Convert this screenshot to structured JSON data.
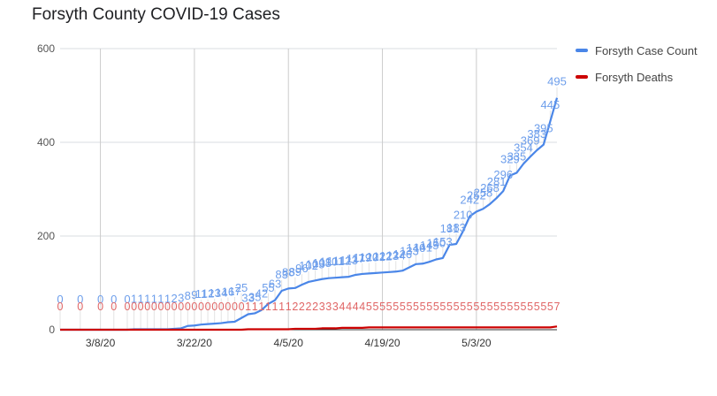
{
  "chart_data": {
    "type": "line",
    "title": "Forsyth County COVID-19 Cases",
    "xlabel": "",
    "ylabel": "",
    "ylim": [
      0,
      600
    ],
    "yticks": [
      0,
      200,
      400,
      600
    ],
    "xticks": [
      "3/8/20",
      "3/22/20",
      "4/5/20",
      "4/19/20",
      "5/3/20"
    ],
    "legend": "right",
    "grid": true,
    "series": [
      {
        "name": "Forsyth Case Count",
        "color": "#4a86e8",
        "label_color": "#6d9eeb",
        "dates": [
          "3/2/20",
          "3/5/20",
          "3/8/20",
          "3/10/20",
          "3/12/20",
          "3/13/20",
          "3/14/20",
          "3/15/20",
          "3/16/20",
          "3/17/20",
          "3/18/20",
          "3/19/20",
          "3/20/20",
          "3/21/20",
          "3/22/20",
          "3/23/20",
          "3/24/20",
          "3/25/20",
          "3/26/20",
          "3/27/20",
          "3/28/20",
          "3/29/20",
          "3/30/20",
          "3/31/20",
          "4/1/20",
          "4/2/20",
          "4/3/20",
          "4/4/20",
          "4/5/20",
          "4/6/20",
          "4/7/20",
          "4/8/20",
          "4/9/20",
          "4/10/20",
          "4/11/20",
          "4/12/20",
          "4/13/20",
          "4/14/20",
          "4/15/20",
          "4/16/20",
          "4/17/20",
          "4/18/20",
          "4/19/20",
          "4/20/20",
          "4/21/20",
          "4/22/20",
          "4/23/20",
          "4/24/20",
          "4/25/20",
          "4/26/20",
          "4/27/20",
          "4/28/20",
          "4/29/20",
          "4/30/20",
          "5/1/20",
          "5/2/20",
          "5/3/20",
          "5/4/20",
          "5/5/20",
          "5/6/20",
          "5/7/20",
          "5/8/20",
          "5/9/20",
          "5/10/20",
          "5/11/20",
          "5/12/20",
          "5/13/20",
          "5/14/20",
          "5/15/20"
        ],
        "values": [
          0,
          0,
          0,
          0,
          0,
          1,
          1,
          1,
          1,
          1,
          1,
          2,
          3,
          8,
          9,
          11,
          12,
          13,
          14,
          16,
          17,
          25,
          33,
          35,
          42,
          55,
          63,
          83,
          88,
          89,
          96,
          102,
          105,
          108,
          110,
          111,
          112,
          113,
          117,
          119,
          120,
          121,
          122,
          123,
          124,
          126,
          133,
          140,
          141,
          145,
          150,
          153,
          181,
          183,
          210,
          242,
          252,
          258,
          268,
          281,
          296,
          329,
          335,
          354,
          369,
          383,
          395,
          445,
          495
        ],
        "labels": [
          "0",
          "0",
          "0",
          "0",
          "0",
          "1",
          "1",
          "1",
          "1",
          "1",
          "1",
          "2",
          "3",
          "8",
          "9",
          "11",
          "12",
          "13",
          "14",
          "16",
          "17",
          "25",
          "33",
          "35",
          "42",
          "55",
          "63",
          "83",
          "88",
          "89",
          "96",
          "102",
          "105",
          "108",
          "110",
          "111",
          "112",
          "113",
          "117",
          "119",
          "120",
          "121",
          "122",
          "123",
          "124",
          "126",
          "133",
          "140",
          "141",
          "145",
          "150",
          "153",
          "181",
          "183",
          "210",
          "242",
          "252",
          "258",
          "268",
          "281",
          "296",
          "329",
          "335",
          "354",
          "369",
          "383",
          "395",
          "445",
          "495"
        ]
      },
      {
        "name": "Forsyth Deaths",
        "color": "#cc0000",
        "label_color": "#e06666",
        "dates": [
          "3/2/20",
          "3/5/20",
          "3/8/20",
          "3/10/20",
          "3/12/20",
          "3/13/20",
          "3/14/20",
          "3/15/20",
          "3/16/20",
          "3/17/20",
          "3/18/20",
          "3/19/20",
          "3/20/20",
          "3/21/20",
          "3/22/20",
          "3/23/20",
          "3/24/20",
          "3/25/20",
          "3/26/20",
          "3/27/20",
          "3/28/20",
          "3/29/20",
          "3/30/20",
          "3/31/20",
          "4/1/20",
          "4/2/20",
          "4/3/20",
          "4/4/20",
          "4/5/20",
          "4/6/20",
          "4/7/20",
          "4/8/20",
          "4/9/20",
          "4/10/20",
          "4/11/20",
          "4/12/20",
          "4/13/20",
          "4/14/20",
          "4/15/20",
          "4/16/20",
          "4/17/20",
          "4/18/20",
          "4/19/20",
          "4/20/20",
          "4/21/20",
          "4/22/20",
          "4/23/20",
          "4/24/20",
          "4/25/20",
          "4/26/20",
          "4/27/20",
          "4/28/20",
          "4/29/20",
          "4/30/20",
          "5/1/20",
          "5/2/20",
          "5/3/20",
          "5/4/20",
          "5/5/20",
          "5/6/20",
          "5/7/20",
          "5/8/20",
          "5/9/20",
          "5/10/20",
          "5/11/20",
          "5/12/20",
          "5/13/20",
          "5/14/20",
          "5/15/20"
        ],
        "values": [
          0,
          0,
          0,
          0,
          0,
          0,
          0,
          0,
          0,
          0,
          0,
          0,
          0,
          0,
          0,
          0,
          0,
          0,
          0,
          0,
          0,
          0,
          1,
          1,
          1,
          1,
          1,
          1,
          1,
          2,
          2,
          2,
          2,
          3,
          3,
          3,
          4,
          4,
          4,
          4,
          5,
          5,
          5,
          5,
          5,
          5,
          5,
          5,
          5,
          5,
          5,
          5,
          5,
          5,
          5,
          5,
          5,
          5,
          5,
          5,
          5,
          5,
          5,
          5,
          5,
          5,
          5,
          5,
          7
        ],
        "labels": [
          "0",
          "0",
          "0",
          "0",
          "0",
          "0",
          "0",
          "0",
          "0",
          "0",
          "0",
          "0",
          "0",
          "0",
          "0",
          "0",
          "0",
          "0",
          "0",
          "0",
          "0",
          "0",
          "1",
          "1",
          "1",
          "1",
          "1",
          "1",
          "1",
          "2",
          "2",
          "2",
          "2",
          "3",
          "3",
          "3",
          "4",
          "4",
          "4",
          "4",
          "5",
          "5",
          "5",
          "5",
          "5",
          "5",
          "5",
          "5",
          "5",
          "5",
          "5",
          "5",
          "5",
          "5",
          "5",
          "5",
          "5",
          "5",
          "5",
          "5",
          "5",
          "5",
          "5",
          "5",
          "5",
          "5",
          "5",
          "5",
          "7"
        ]
      }
    ]
  }
}
